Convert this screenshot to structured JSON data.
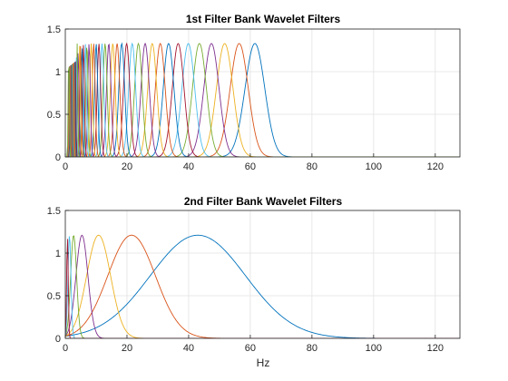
{
  "palette": [
    "#0072BD",
    "#D95319",
    "#EDB120",
    "#7E2F8E",
    "#77AC30",
    "#4DBEEE",
    "#A2142F"
  ],
  "chart_data": [
    {
      "type": "line",
      "title": "1st Filter Bank Wavelet Filters",
      "xlabel": "",
      "ylabel": "",
      "xlim": [
        0,
        128
      ],
      "ylim": [
        0,
        1.5
      ],
      "xticks": [
        0,
        20,
        40,
        60,
        80,
        100,
        120
      ],
      "xtick_labels": [
        "0",
        "20",
        "40",
        "60",
        "80",
        "100",
        "120"
      ],
      "yticks": [
        0,
        0.5,
        1,
        1.5
      ],
      "ytick_labels": [
        "0",
        "0.5",
        "1",
        "1.5"
      ],
      "grid": true,
      "peak_value": 1.33,
      "series_note": "Gaussian-shaped band-pass filters, 8 per octave, decreasing bandwidth toward low frequencies",
      "centers_hz": [
        61.5,
        56.4,
        51.7,
        47.4,
        43.5,
        39.9,
        36.6,
        33.5,
        30.8,
        28.2,
        25.9,
        23.7,
        21.7,
        19.9,
        18.3,
        16.8,
        15.4,
        14.1,
        12.9,
        11.9,
        10.9,
        10.0,
        9.2,
        8.4,
        7.7,
        7.0,
        6.5,
        5.9,
        5.4,
        5.0,
        4.6,
        4.2,
        3.85,
        3.5,
        3.2,
        2.95,
        2.7,
        2.5,
        2.3,
        2.1,
        1.9,
        1.75,
        1.6,
        1.47,
        1.35,
        1.24,
        1.13
      ],
      "sigma_ratio": 0.052,
      "grid_on": true
    },
    {
      "type": "line",
      "title": "2nd Filter Bank Wavelet Filters",
      "xlabel": "Hz",
      "ylabel": "",
      "xlim": [
        0,
        128
      ],
      "ylim": [
        0,
        1.5
      ],
      "xticks": [
        0,
        20,
        40,
        60,
        80,
        100,
        120
      ],
      "xtick_labels": [
        "0",
        "20",
        "40",
        "60",
        "80",
        "100",
        "120"
      ],
      "yticks": [
        0,
        0.5,
        1,
        1.5
      ],
      "ytick_labels": [
        "0",
        "0.5",
        "1",
        "1.5"
      ],
      "grid": true,
      "peak_value": 1.21,
      "series_note": "Gaussian-shaped band-pass filters, 1 per octave",
      "centers_hz": [
        43.0,
        21.5,
        10.8,
        5.4,
        2.7,
        1.35,
        0.7
      ],
      "sigma_ratio": 0.36,
      "grid_on": true
    }
  ]
}
